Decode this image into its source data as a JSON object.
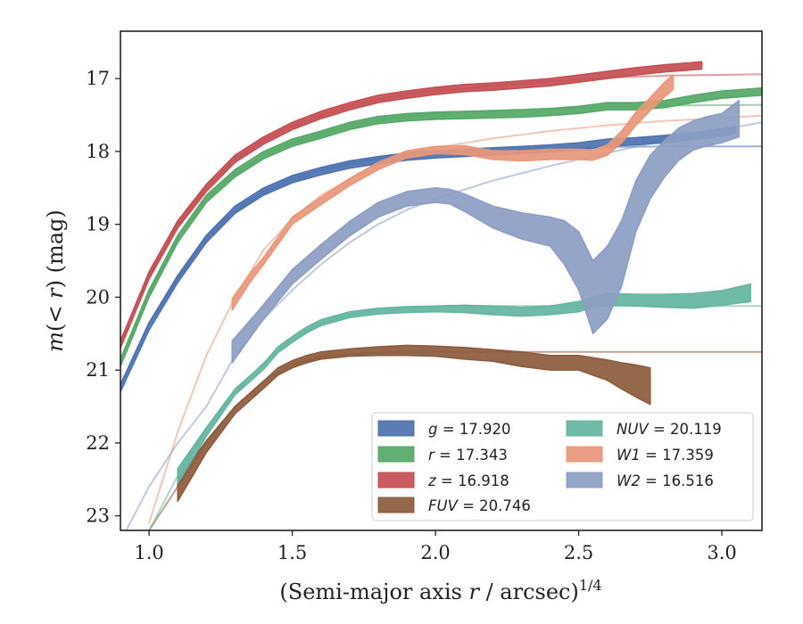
{
  "chart_data": {
    "type": "line",
    "title": "",
    "xlabel": "(Semi-major axis r / arcsec)",
    "xlabel_parts": {
      "prefix": "(Semi-major axis ",
      "var": "r",
      "suffix": " / arcsec)",
      "power": "1/4"
    },
    "ylabel": "m(< r) (mag)",
    "ylabel_parts": {
      "m": "m",
      "open": "(",
      "lt": "< ",
      "r": "r",
      "close": ")",
      "unit": " (mag)"
    },
    "xlim": [
      0.9,
      3.14
    ],
    "ylim": [
      23.2,
      16.35
    ],
    "y_inverted": true,
    "xticks": [
      1.0,
      1.5,
      2.0,
      2.5,
      3.0
    ],
    "xtick_labels": [
      "1.0",
      "1.5",
      "2.0",
      "2.5",
      "3.0"
    ],
    "yticks": [
      17,
      18,
      19,
      20,
      21,
      22,
      23
    ],
    "ytick_labels": [
      "17",
      "18",
      "19",
      "20",
      "21",
      "22",
      "23"
    ],
    "grid": false,
    "legend_position": "lower-right",
    "series": [
      {
        "name": "g",
        "legend_label": "g = 17.920",
        "color": "#4c72b0",
        "band_width": 0.05,
        "x": [
          0.9,
          1.0,
          1.1,
          1.2,
          1.3,
          1.4,
          1.5,
          1.6,
          1.7,
          1.8,
          1.9,
          2.0,
          2.1,
          2.2,
          2.3,
          2.4,
          2.5,
          2.6,
          2.7,
          2.8,
          2.9,
          3.0,
          3.05
        ],
        "y": [
          21.25,
          20.4,
          19.75,
          19.2,
          18.8,
          18.55,
          18.38,
          18.27,
          18.18,
          18.12,
          18.07,
          18.04,
          18.02,
          18.0,
          17.98,
          17.96,
          17.93,
          17.88,
          17.86,
          17.83,
          17.79,
          17.74,
          17.7
        ],
        "model_x": [
          0.9,
          1.0,
          1.1,
          1.2,
          1.3,
          1.4,
          1.5,
          1.6,
          1.7,
          1.8,
          1.9,
          2.0,
          2.2,
          2.4,
          2.6,
          2.8,
          3.14
        ],
        "model_y": [
          21.2,
          20.35,
          19.75,
          19.2,
          18.8,
          18.55,
          18.38,
          18.26,
          18.17,
          18.1,
          18.05,
          18.02,
          17.98,
          17.96,
          17.94,
          17.93,
          17.93
        ]
      },
      {
        "name": "r",
        "legend_label": "r = 17.343",
        "color": "#55a868",
        "band_width": 0.05,
        "x": [
          0.9,
          1.0,
          1.1,
          1.2,
          1.3,
          1.4,
          1.5,
          1.6,
          1.7,
          1.8,
          1.9,
          2.0,
          2.1,
          2.2,
          2.3,
          2.4,
          2.5,
          2.6,
          2.7,
          2.8,
          2.9,
          3.0,
          3.14
        ],
        "y": [
          20.9,
          19.95,
          19.2,
          18.65,
          18.3,
          18.05,
          17.88,
          17.77,
          17.65,
          17.57,
          17.53,
          17.51,
          17.5,
          17.49,
          17.48,
          17.46,
          17.43,
          17.38,
          17.38,
          17.35,
          17.28,
          17.22,
          17.18
        ],
        "model_x": [
          0.9,
          1.0,
          1.1,
          1.2,
          1.3,
          1.4,
          1.5,
          1.6,
          1.7,
          1.8,
          1.9,
          2.0,
          2.2,
          2.4,
          2.6,
          2.8,
          3.14
        ],
        "model_y": [
          20.85,
          19.95,
          19.2,
          18.65,
          18.3,
          18.05,
          17.88,
          17.76,
          17.65,
          17.57,
          17.52,
          17.48,
          17.44,
          17.41,
          17.39,
          17.37,
          17.36
        ]
      },
      {
        "name": "z",
        "legend_label": "z = 16.918",
        "color": "#c44e52",
        "band_width": 0.05,
        "x": [
          0.9,
          1.0,
          1.1,
          1.2,
          1.3,
          1.4,
          1.5,
          1.6,
          1.7,
          1.8,
          1.9,
          2.0,
          2.1,
          2.2,
          2.3,
          2.4,
          2.5,
          2.6,
          2.7,
          2.8,
          2.93
        ],
        "y": [
          20.65,
          19.7,
          19.0,
          18.5,
          18.1,
          17.85,
          17.65,
          17.5,
          17.38,
          17.28,
          17.22,
          17.17,
          17.13,
          17.11,
          17.08,
          17.05,
          17.0,
          16.95,
          16.9,
          16.86,
          16.82
        ],
        "model_x": [
          0.9,
          1.0,
          1.1,
          1.2,
          1.3,
          1.4,
          1.5,
          1.6,
          1.7,
          1.8,
          1.9,
          2.0,
          2.2,
          2.4,
          2.6,
          2.8,
          3.14
        ],
        "model_y": [
          20.6,
          19.7,
          19.0,
          18.5,
          18.1,
          17.85,
          17.65,
          17.5,
          17.38,
          17.29,
          17.22,
          17.17,
          17.1,
          17.04,
          16.99,
          16.96,
          16.94
        ]
      },
      {
        "name": "FUV",
        "legend_label": "FUV = 20.746",
        "color": "#8c5a3c",
        "x": [
          1.1,
          1.2,
          1.3,
          1.4,
          1.45,
          1.5,
          1.55,
          1.6,
          1.7,
          1.8,
          1.9,
          2.0,
          2.1,
          2.2,
          2.3,
          2.4,
          2.5,
          2.55,
          2.6,
          2.65,
          2.7,
          2.75
        ],
        "y": [
          22.65,
          22.05,
          21.55,
          21.2,
          21.02,
          20.92,
          20.85,
          20.8,
          20.76,
          20.74,
          20.73,
          20.74,
          20.77,
          20.8,
          20.85,
          20.9,
          20.9,
          20.95,
          21.0,
          21.08,
          21.15,
          21.22
        ],
        "y_err": [
          0.15,
          0.08,
          0.05,
          0.05,
          0.05,
          0.05,
          0.05,
          0.05,
          0.05,
          0.06,
          0.07,
          0.07,
          0.08,
          0.08,
          0.1,
          0.1,
          0.1,
          0.12,
          0.14,
          0.18,
          0.22,
          0.25
        ],
        "model_x": [
          1.0,
          1.1,
          1.2,
          1.3,
          1.4,
          1.5,
          1.6,
          1.7,
          1.8,
          1.9,
          2.0,
          2.2,
          2.4,
          2.6,
          2.8,
          3.14
        ],
        "model_y": [
          23.2,
          22.6,
          22.0,
          21.5,
          21.15,
          20.92,
          20.82,
          20.78,
          20.76,
          20.75,
          20.75,
          20.75,
          20.75,
          20.75,
          20.75,
          20.75
        ]
      },
      {
        "name": "NUV",
        "legend_label": "NUV = 20.119",
        "color": "#64b5a0",
        "x": [
          1.1,
          1.2,
          1.3,
          1.4,
          1.45,
          1.5,
          1.55,
          1.6,
          1.7,
          1.8,
          1.9,
          2.0,
          2.1,
          2.2,
          2.3,
          2.4,
          2.5,
          2.55,
          2.6,
          2.7,
          2.8,
          2.9,
          3.0,
          3.1
        ],
        "y": [
          22.45,
          21.85,
          21.3,
          20.95,
          20.72,
          20.58,
          20.45,
          20.35,
          20.24,
          20.19,
          20.17,
          20.16,
          20.16,
          20.18,
          20.2,
          20.18,
          20.13,
          20.07,
          20.03,
          20.04,
          20.05,
          20.05,
          20.01,
          19.94
        ],
        "y_err": [
          0.1,
          0.06,
          0.04,
          0.04,
          0.04,
          0.04,
          0.04,
          0.04,
          0.04,
          0.04,
          0.04,
          0.04,
          0.05,
          0.06,
          0.06,
          0.06,
          0.07,
          0.07,
          0.08,
          0.08,
          0.09,
          0.1,
          0.1,
          0.12
        ],
        "model_x": [
          1.0,
          1.1,
          1.2,
          1.3,
          1.4,
          1.5,
          1.6,
          1.7,
          1.8,
          1.9,
          2.0,
          2.2,
          2.4,
          2.6,
          2.8,
          3.14
        ],
        "model_y": [
          23.2,
          22.45,
          21.8,
          21.3,
          20.9,
          20.58,
          20.36,
          20.24,
          20.18,
          20.15,
          20.13,
          20.12,
          20.12,
          20.12,
          20.12,
          20.12
        ]
      },
      {
        "name": "W1",
        "legend_label": "W1 = 17.359",
        "color": "#e8977a",
        "x": [
          1.29,
          1.35,
          1.4,
          1.5,
          1.6,
          1.7,
          1.8,
          1.9,
          2.0,
          2.1,
          2.2,
          2.3,
          2.4,
          2.5,
          2.55,
          2.6,
          2.65,
          2.7,
          2.75,
          2.8,
          2.83
        ],
        "y": [
          20.1,
          19.75,
          19.5,
          18.95,
          18.68,
          18.42,
          18.2,
          18.04,
          17.98,
          17.98,
          18.05,
          18.06,
          18.04,
          18.04,
          18.05,
          17.98,
          17.8,
          17.55,
          17.35,
          17.15,
          17.05
        ],
        "y_err": [
          0.08,
          0.06,
          0.05,
          0.05,
          0.05,
          0.05,
          0.05,
          0.05,
          0.05,
          0.06,
          0.06,
          0.07,
          0.07,
          0.07,
          0.07,
          0.07,
          0.08,
          0.09,
          0.09,
          0.1,
          0.1
        ],
        "model_x": [
          1.0,
          1.1,
          1.2,
          1.3,
          1.4,
          1.5,
          1.6,
          1.7,
          1.8,
          1.9,
          2.0,
          2.2,
          2.4,
          2.6,
          2.8,
          3.0,
          3.14
        ],
        "model_y": [
          23.1,
          21.85,
          20.8,
          20.0,
          19.35,
          18.92,
          18.6,
          18.38,
          18.2,
          18.05,
          17.95,
          17.82,
          17.72,
          17.64,
          17.58,
          17.54,
          17.51
        ]
      },
      {
        "name": "W2",
        "legend_label": "W2 = 16.516",
        "color": "#8c9dc3",
        "x": [
          1.29,
          1.35,
          1.4,
          1.5,
          1.6,
          1.7,
          1.8,
          1.9,
          2.0,
          2.05,
          2.1,
          2.2,
          2.3,
          2.4,
          2.45,
          2.5,
          2.55,
          2.6,
          2.65,
          2.7,
          2.75,
          2.8,
          2.85,
          2.9,
          2.95,
          3.0,
          3.06
        ],
        "y": [
          20.75,
          20.45,
          20.2,
          19.72,
          19.38,
          19.06,
          18.8,
          18.65,
          18.6,
          18.62,
          18.7,
          18.9,
          19.02,
          19.1,
          19.25,
          19.5,
          20.0,
          19.8,
          19.4,
          18.75,
          18.35,
          18.1,
          17.9,
          17.78,
          17.72,
          17.68,
          17.55
        ],
        "y_err": [
          0.15,
          0.12,
          0.1,
          0.1,
          0.1,
          0.1,
          0.1,
          0.1,
          0.1,
          0.1,
          0.12,
          0.15,
          0.18,
          0.2,
          0.3,
          0.4,
          0.5,
          0.5,
          0.45,
          0.35,
          0.3,
          0.25,
          0.22,
          0.2,
          0.2,
          0.2,
          0.25
        ],
        "model_x": [
          0.92,
          1.0,
          1.1,
          1.2,
          1.3,
          1.4,
          1.5,
          1.6,
          1.7,
          1.8,
          1.9,
          2.0,
          2.2,
          2.4,
          2.6,
          2.8,
          3.0,
          3.14
        ],
        "model_y": [
          23.2,
          22.6,
          22.0,
          21.5,
          20.8,
          20.3,
          19.9,
          19.55,
          19.25,
          19.0,
          18.8,
          18.65,
          18.4,
          18.2,
          18.02,
          17.85,
          17.7,
          17.6
        ]
      }
    ]
  }
}
